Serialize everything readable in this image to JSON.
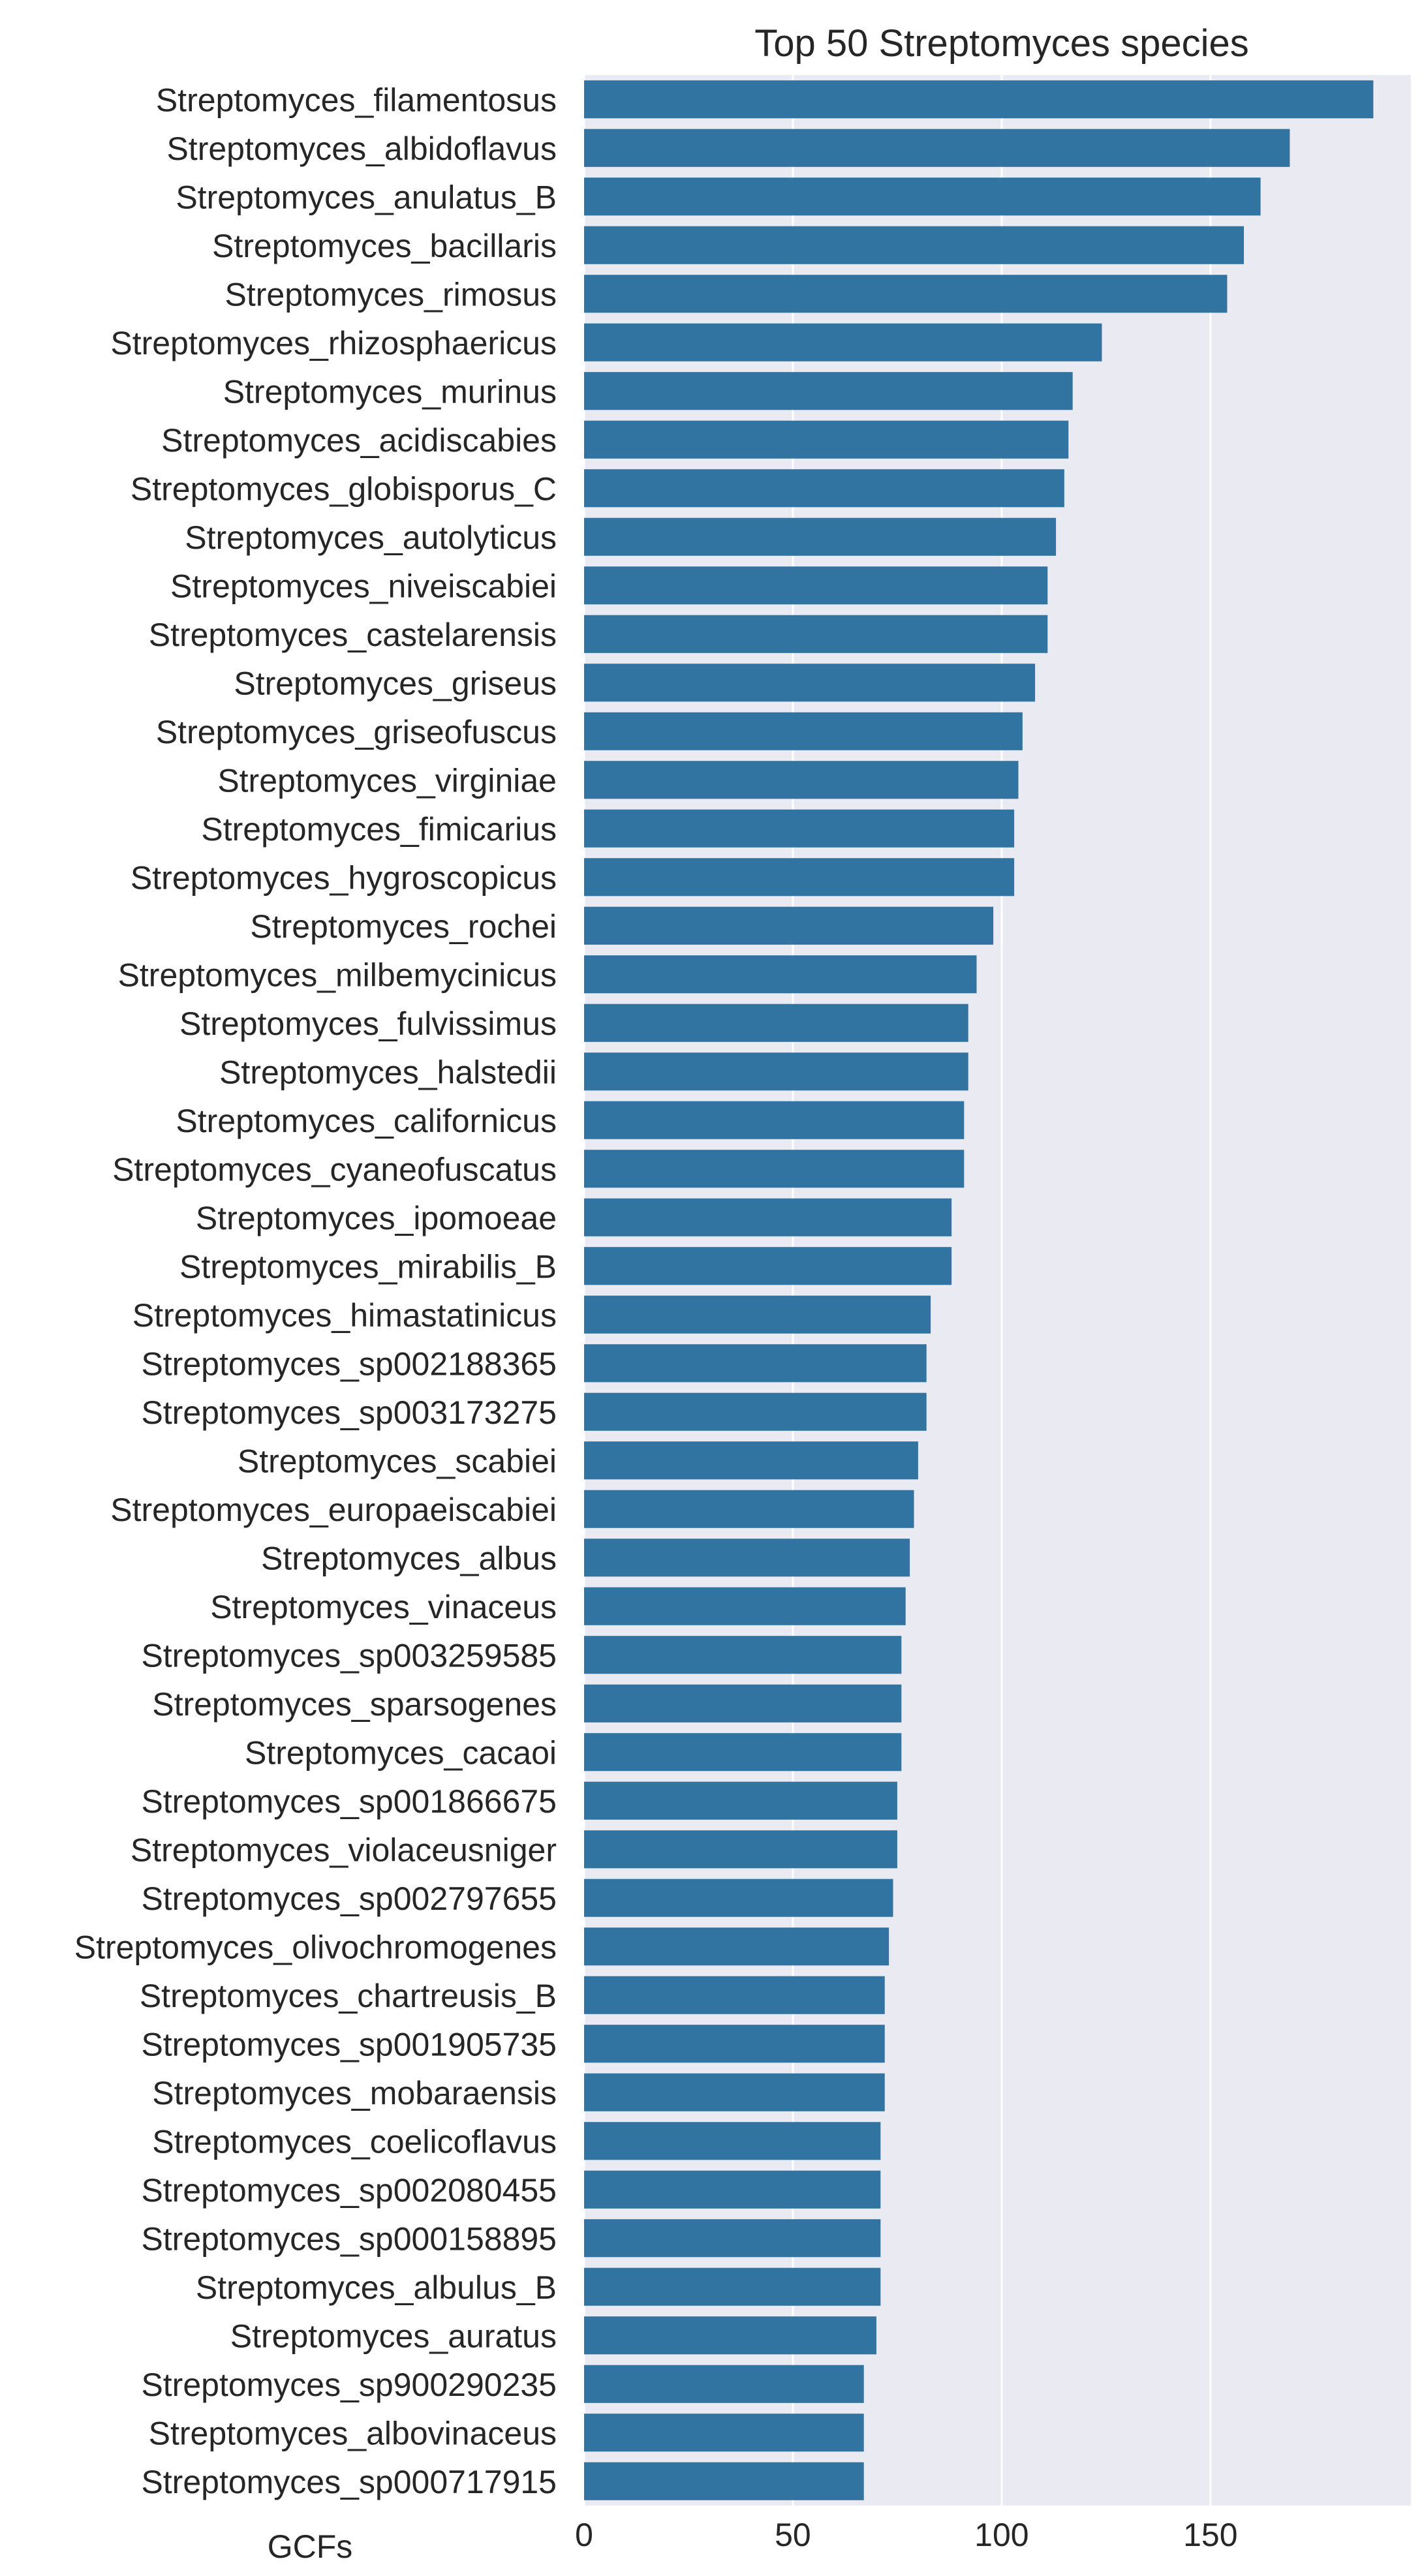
{
  "chart_data": {
    "type": "bar",
    "orientation": "horizontal",
    "title": "Top 50 Streptomyces species",
    "xlabel": "GCFs",
    "ylabel": "",
    "xlim": [
      0,
      198
    ],
    "xticks": [
      0,
      50,
      100,
      150
    ],
    "grid": true,
    "colors": {
      "bar": "#3274a1",
      "background": "#eaeaf2",
      "grid": "#ffffff"
    },
    "categories": [
      "Streptomyces_filamentosus",
      "Streptomyces_albidoflavus",
      "Streptomyces_anulatus_B",
      "Streptomyces_bacillaris",
      "Streptomyces_rimosus",
      "Streptomyces_rhizosphaericus",
      "Streptomyces_murinus",
      "Streptomyces_acidiscabies",
      "Streptomyces_globisporus_C",
      "Streptomyces_autolyticus",
      "Streptomyces_niveiscabiei",
      "Streptomyces_castelarensis",
      "Streptomyces_griseus",
      "Streptomyces_griseofuscus",
      "Streptomyces_virginiae",
      "Streptomyces_fimicarius",
      "Streptomyces_hygroscopicus",
      "Streptomyces_rochei",
      "Streptomyces_milbemycinicus",
      "Streptomyces_fulvissimus",
      "Streptomyces_halstedii",
      "Streptomyces_californicus",
      "Streptomyces_cyaneofuscatus",
      "Streptomyces_ipomoeae",
      "Streptomyces_mirabilis_B",
      "Streptomyces_himastatinicus",
      "Streptomyces_sp002188365",
      "Streptomyces_sp003173275",
      "Streptomyces_scabiei",
      "Streptomyces_europaeiscabiei",
      "Streptomyces_albus",
      "Streptomyces_vinaceus",
      "Streptomyces_sp003259585",
      "Streptomyces_sparsogenes",
      "Streptomyces_cacaoi",
      "Streptomyces_sp001866675",
      "Streptomyces_violaceusniger",
      "Streptomyces_sp002797655",
      "Streptomyces_olivochromogenes",
      "Streptomyces_chartreusis_B",
      "Streptomyces_sp001905735",
      "Streptomyces_mobaraensis",
      "Streptomyces_coelicoflavus",
      "Streptomyces_sp002080455",
      "Streptomyces_sp000158895",
      "Streptomyces_albulus_B",
      "Streptomyces_auratus",
      "Streptomyces_sp900290235",
      "Streptomyces_albovinaceus",
      "Streptomyces_sp000717915"
    ],
    "values": [
      189,
      169,
      162,
      158,
      154,
      124,
      117,
      116,
      115,
      113,
      111,
      111,
      108,
      105,
      104,
      103,
      103,
      98,
      94,
      92,
      92,
      91,
      91,
      88,
      88,
      83,
      82,
      82,
      80,
      79,
      78,
      77,
      76,
      76,
      76,
      75,
      75,
      74,
      73,
      72,
      72,
      72,
      71,
      71,
      71,
      71,
      70,
      67,
      67,
      67
    ]
  }
}
